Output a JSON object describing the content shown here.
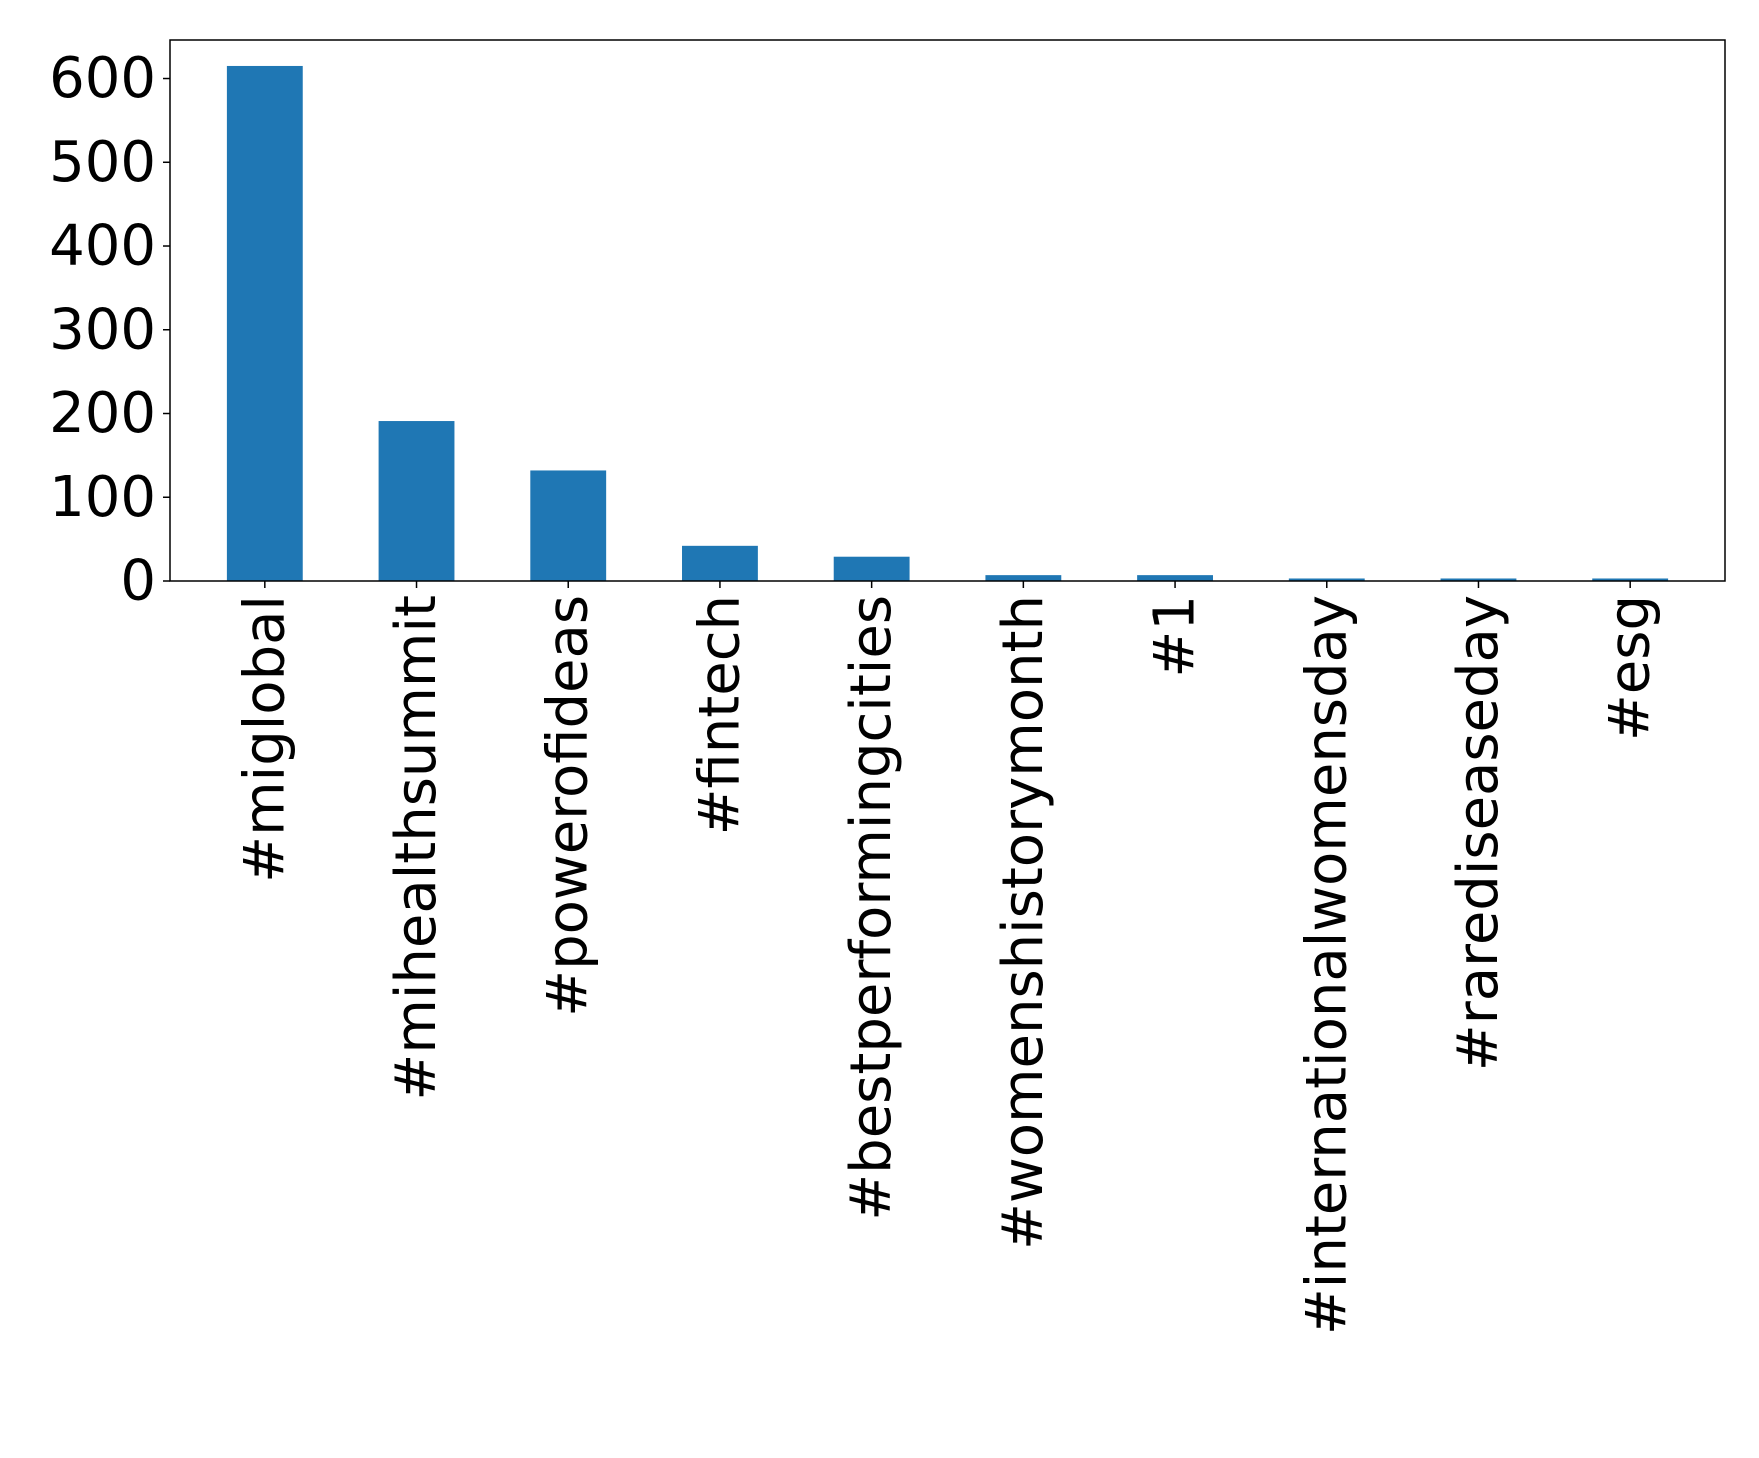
{
  "chart_data": {
    "type": "bar",
    "title": "",
    "xlabel": "",
    "ylabel": "",
    "categories": [
      "#miglobal",
      "#mihealthsummit",
      "#powerofideas",
      "#fintech",
      "#bestperformingcities",
      "#womenshistorymonth",
      "#1",
      "#internationalwomensday",
      "#rarediseaseday",
      "#esg"
    ],
    "values": [
      615,
      191,
      132,
      42,
      29,
      7,
      7,
      3,
      3,
      3
    ],
    "ylim": [
      0,
      646
    ],
    "yticks": [
      0,
      100,
      200,
      300,
      400,
      500,
      600
    ],
    "grid": false,
    "legend": "none",
    "bar_color": "#1f77b4"
  }
}
